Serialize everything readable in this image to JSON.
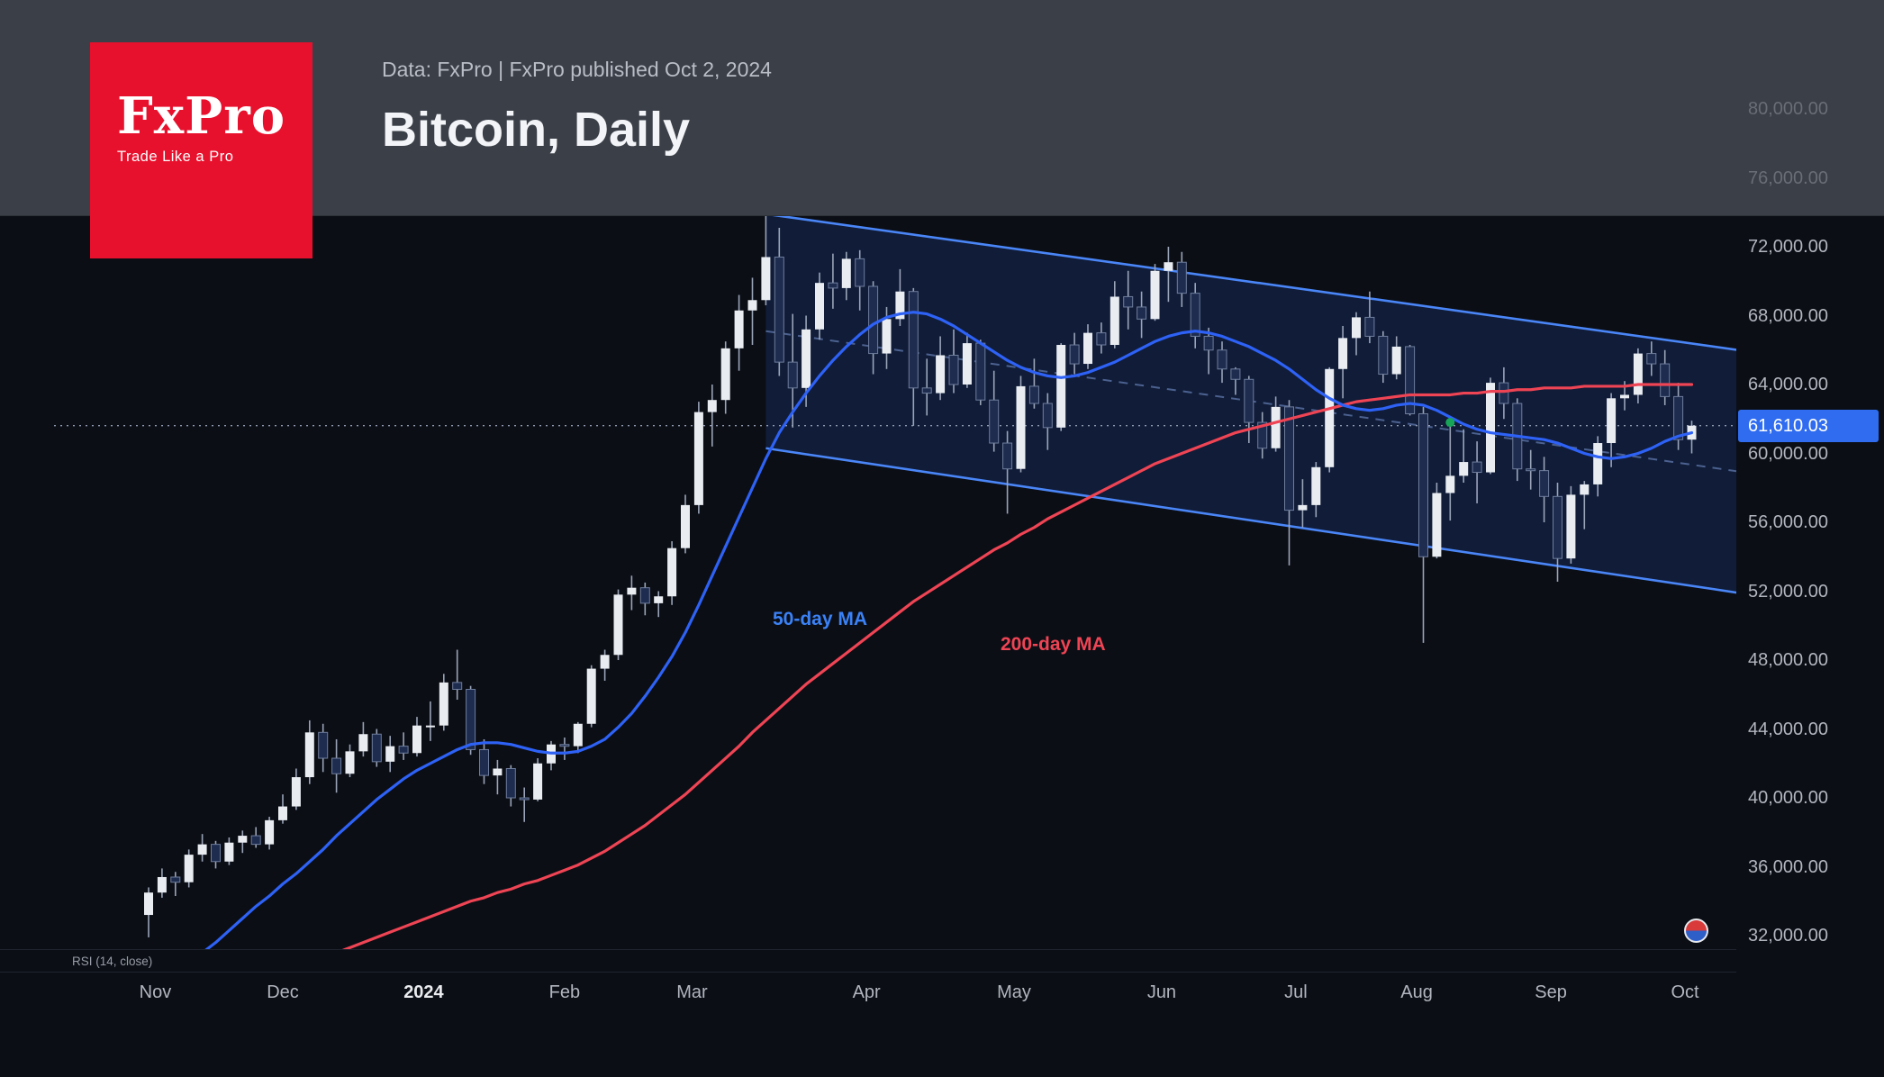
{
  "header": {
    "logo": {
      "brand": "FxPro",
      "tagline": "Trade Like a Pro",
      "bg_color": "#e8112d"
    },
    "source_line": "Data: FxPro | FxPro published Oct 2, 2024",
    "title": "Bitcoin, Daily"
  },
  "price_label": "61,610.03",
  "indicator_strip": {
    "label": "RSI (14, close)"
  },
  "chart_data": {
    "type": "candlestick",
    "title": "Bitcoin, Daily",
    "symbol": "Bitcoin",
    "timeframe": "Daily",
    "start": "2023-11-01",
    "end": "2024-10-02",
    "interval_days": 3,
    "last_price": 61610.03,
    "ylim": [
      31200,
      74500
    ],
    "grid": false,
    "price_axis": {
      "values": [
        80000,
        76000,
        72000,
        68000,
        64000,
        60000,
        56000,
        52000,
        48000,
        44000,
        40000,
        36000,
        32000
      ],
      "labels": [
        "80,000.00",
        "76,000.00",
        "72,000.00",
        "68,000.00",
        "64,000.00",
        "60,000.00",
        "56,000.00",
        "52,000.00",
        "48,000.00",
        "44,000.00",
        "40,000.00",
        "36,000.00",
        "32,000.00"
      ]
    },
    "x_axis": {
      "ticks": [
        {
          "label": "Nov",
          "i": 0.5
        },
        {
          "label": "Dec",
          "i": 10
        },
        {
          "label": "2024",
          "i": 20.5,
          "strong": true
        },
        {
          "label": "Feb",
          "i": 31
        },
        {
          "label": "Mar",
          "i": 40.5
        },
        {
          "label": "Apr",
          "i": 53.5
        },
        {
          "label": "May",
          "i": 64.5
        },
        {
          "label": "Jun",
          "i": 75.5
        },
        {
          "label": "Jul",
          "i": 85.5
        },
        {
          "label": "Aug",
          "i": 94.5
        },
        {
          "label": "Sep",
          "i": 104.5
        },
        {
          "label": "Oct",
          "i": 114.5
        }
      ]
    },
    "candles": [
      [
        33200,
        34800,
        31900,
        34500
      ],
      [
        34500,
        35900,
        34200,
        35400
      ],
      [
        35400,
        35700,
        34300,
        35100
      ],
      [
        35100,
        37000,
        34800,
        36700
      ],
      [
        36700,
        37900,
        36300,
        37300
      ],
      [
        37300,
        37500,
        35900,
        36300
      ],
      [
        36300,
        37700,
        36100,
        37400
      ],
      [
        37400,
        38100,
        36800,
        37800
      ],
      [
        37800,
        38300,
        37100,
        37300
      ],
      [
        37300,
        38900,
        37000,
        38700
      ],
      [
        38700,
        40200,
        38500,
        39500
      ],
      [
        39500,
        41700,
        39300,
        41200
      ],
      [
        41200,
        44500,
        40800,
        43800
      ],
      [
        43800,
        44300,
        41500,
        42300
      ],
      [
        42300,
        43400,
        40300,
        41400
      ],
      [
        41400,
        43100,
        41200,
        42700
      ],
      [
        42700,
        44400,
        42400,
        43700
      ],
      [
        43700,
        44000,
        41800,
        42100
      ],
      [
        42100,
        43600,
        41500,
        43000
      ],
      [
        43000,
        43800,
        42200,
        42600
      ],
      [
        42600,
        44700,
        42400,
        44200
      ],
      [
        44200,
        45600,
        43300,
        44200
      ],
      [
        44200,
        47200,
        43900,
        46700
      ],
      [
        46700,
        48600,
        45700,
        46300
      ],
      [
        46300,
        46500,
        42500,
        42800
      ],
      [
        42800,
        43400,
        40800,
        41300
      ],
      [
        41300,
        42200,
        40200,
        41700
      ],
      [
        41700,
        41900,
        39500,
        40000
      ],
      [
        40000,
        40600,
        38600,
        39900
      ],
      [
        39900,
        42300,
        39800,
        42000
      ],
      [
        42000,
        43300,
        41600,
        43100
      ],
      [
        43100,
        43500,
        42200,
        43000
      ],
      [
        43000,
        44400,
        42600,
        44300
      ],
      [
        44300,
        47700,
        44100,
        47500
      ],
      [
        47500,
        48600,
        46800,
        48300
      ],
      [
        48300,
        52100,
        48000,
        51800
      ],
      [
        51800,
        52900,
        50900,
        52200
      ],
      [
        52200,
        52500,
        50600,
        51300
      ],
      [
        51300,
        52000,
        50500,
        51700
      ],
      [
        51700,
        54900,
        51200,
        54500
      ],
      [
        54500,
        57600,
        54200,
        57000
      ],
      [
        57000,
        63000,
        56500,
        62400
      ],
      [
        62400,
        64000,
        60400,
        63100
      ],
      [
        63100,
        66500,
        62300,
        66100
      ],
      [
        66100,
        69200,
        64800,
        68300
      ],
      [
        68300,
        70200,
        66300,
        68900
      ],
      [
        68900,
        73800,
        68600,
        71400
      ],
      [
        71400,
        73100,
        64500,
        65300
      ],
      [
        65300,
        68100,
        61500,
        63800
      ],
      [
        63800,
        68000,
        62700,
        67200
      ],
      [
        67200,
        70500,
        66600,
        69900
      ],
      [
        69900,
        71600,
        68400,
        69600
      ],
      [
        69600,
        71700,
        68900,
        71300
      ],
      [
        71300,
        71800,
        68300,
        69700
      ],
      [
        69700,
        70000,
        64600,
        65800
      ],
      [
        65800,
        68500,
        64900,
        67800
      ],
      [
        67800,
        70700,
        67400,
        69400
      ],
      [
        69400,
        69600,
        61600,
        63800
      ],
      [
        63800,
        65500,
        62200,
        63500
      ],
      [
        63500,
        66800,
        63100,
        65700
      ],
      [
        65700,
        67200,
        63500,
        64000
      ],
      [
        64000,
        67000,
        63800,
        66400
      ],
      [
        66400,
        66600,
        62800,
        63100
      ],
      [
        63100,
        64800,
        60100,
        60600
      ],
      [
        60600,
        61300,
        56500,
        59100
      ],
      [
        59100,
        64500,
        58900,
        63900
      ],
      [
        63900,
        65500,
        62600,
        62900
      ],
      [
        62900,
        63500,
        60200,
        61500
      ],
      [
        61500,
        66400,
        61300,
        66300
      ],
      [
        66300,
        67000,
        64600,
        65200
      ],
      [
        65200,
        67500,
        64900,
        67000
      ],
      [
        67000,
        67600,
        65800,
        66300
      ],
      [
        66300,
        70000,
        66100,
        69100
      ],
      [
        69100,
        70600,
        67200,
        68500
      ],
      [
        68500,
        69400,
        66700,
        67800
      ],
      [
        67800,
        71000,
        67700,
        70600
      ],
      [
        70600,
        72000,
        68800,
        71100
      ],
      [
        71100,
        71700,
        68500,
        69300
      ],
      [
        69300,
        69900,
        66100,
        66800
      ],
      [
        66800,
        67300,
        64600,
        66000
      ],
      [
        66000,
        66500,
        64100,
        64900
      ],
      [
        64900,
        65000,
        63400,
        64300
      ],
      [
        64300,
        64500,
        60600,
        61800
      ],
      [
        61800,
        62400,
        59700,
        60300
      ],
      [
        60300,
        63300,
        60100,
        62700
      ],
      [
        62700,
        63100,
        53500,
        56700
      ],
      [
        56700,
        58500,
        55700,
        57000
      ],
      [
        57000,
        59500,
        56300,
        59200
      ],
      [
        59200,
        65000,
        58900,
        64900
      ],
      [
        64900,
        67400,
        63200,
        66700
      ],
      [
        66700,
        68200,
        65700,
        67900
      ],
      [
        67900,
        69400,
        66400,
        66800
      ],
      [
        66800,
        67100,
        64100,
        64600
      ],
      [
        64600,
        66800,
        64300,
        66200
      ],
      [
        66200,
        66300,
        62200,
        62300
      ],
      [
        62300,
        62700,
        49000,
        54000
      ],
      [
        54000,
        58300,
        53900,
        57700
      ],
      [
        57700,
        61800,
        56100,
        58700
      ],
      [
        58700,
        61400,
        58300,
        59500
      ],
      [
        59500,
        60700,
        57100,
        58900
      ],
      [
        58900,
        64400,
        58800,
        64100
      ],
      [
        64100,
        65000,
        62000,
        62900
      ],
      [
        62900,
        63200,
        58400,
        59100
      ],
      [
        59100,
        60200,
        57900,
        59000
      ],
      [
        59000,
        59800,
        56000,
        57500
      ],
      [
        57500,
        58300,
        52550,
        53900
      ],
      [
        53900,
        58100,
        53600,
        57600
      ],
      [
        57600,
        58400,
        55600,
        58200
      ],
      [
        58200,
        61000,
        57500,
        60600
      ],
      [
        60600,
        63500,
        59200,
        63200
      ],
      [
        63200,
        64200,
        62500,
        63400
      ],
      [
        63400,
        66100,
        62900,
        65800
      ],
      [
        65800,
        66500,
        64500,
        65200
      ],
      [
        65200,
        66000,
        62800,
        63300
      ],
      [
        63300,
        64100,
        60200,
        60800
      ],
      [
        60800,
        61900,
        60000,
        61610.03
      ]
    ],
    "ma50": {
      "label": "50-day MA",
      "color": "#2e62f6",
      "values": [
        28600,
        29200,
        29800,
        30400,
        31000,
        31600,
        32300,
        33000,
        33700,
        34300,
        35000,
        35600,
        36300,
        37000,
        37800,
        38500,
        39200,
        39900,
        40500,
        41100,
        41600,
        42000,
        42400,
        42800,
        43100,
        43200,
        43200,
        43100,
        42900,
        42700,
        42600,
        42600,
        42700,
        43000,
        43400,
        44100,
        44900,
        45900,
        47000,
        48200,
        49600,
        51200,
        52900,
        54600,
        56300,
        58000,
        59700,
        61200,
        62400,
        63500,
        64500,
        65400,
        66200,
        66900,
        67500,
        67900,
        68100,
        68200,
        68100,
        67800,
        67400,
        66900,
        66400,
        65900,
        65400,
        65000,
        64700,
        64500,
        64400,
        64500,
        64700,
        65000,
        65300,
        65700,
        66100,
        66500,
        66800,
        67000,
        67100,
        67000,
        66800,
        66500,
        66200,
        65800,
        65400,
        64900,
        64300,
        63700,
        63200,
        62800,
        62600,
        62500,
        62600,
        62800,
        62900,
        62800,
        62500,
        62100,
        61700,
        61400,
        61200,
        61100,
        61000,
        60900,
        60800,
        60600,
        60300,
        60000,
        59800,
        59700,
        59800,
        60000,
        60300,
        60700,
        61000,
        61200
      ]
    },
    "ma200": {
      "label": "200-day MA",
      "color": "#ef4454",
      "values": [
        27800,
        28000,
        28200,
        28400,
        28600,
        28800,
        29000,
        29300,
        29500,
        29700,
        29900,
        30200,
        30400,
        30700,
        31000,
        31300,
        31600,
        31900,
        32200,
        32500,
        32800,
        33100,
        33400,
        33700,
        34000,
        34200,
        34500,
        34700,
        35000,
        35200,
        35500,
        35800,
        36100,
        36500,
        36900,
        37400,
        37900,
        38400,
        39000,
        39600,
        40200,
        40900,
        41600,
        42300,
        43000,
        43800,
        44500,
        45200,
        45900,
        46600,
        47200,
        47800,
        48400,
        49000,
        49600,
        50200,
        50800,
        51400,
        51900,
        52400,
        52900,
        53400,
        53900,
        54400,
        54800,
        55300,
        55700,
        56200,
        56600,
        57000,
        57400,
        57800,
        58200,
        58600,
        59000,
        59400,
        59700,
        60000,
        60300,
        60600,
        60900,
        61200,
        61400,
        61600,
        61800,
        62000,
        62200,
        62400,
        62600,
        62800,
        63000,
        63100,
        63200,
        63300,
        63400,
        63400,
        63400,
        63400,
        63500,
        63500,
        63600,
        63600,
        63700,
        63700,
        63800,
        63800,
        63800,
        63900,
        63900,
        63900,
        63900,
        64000,
        64000,
        64000,
        64000,
        64000
      ]
    },
    "channel": {
      "start_index": 46,
      "end_index": 118.5,
      "upper": [
        73900,
        66000
      ],
      "lower": [
        60300,
        51900
      ],
      "fill": "rgba(42,98,230,0.17)",
      "line_color": "#4a86f7",
      "mid_color": "rgba(125,155,215,0.55)"
    },
    "marker": {
      "index": 97,
      "price": 61800,
      "color": "#18a558"
    },
    "colors": {
      "up": "#e9edf2",
      "down": "#1e2c50",
      "down_border": "#6f7d9c",
      "wick": "#9aa4b8",
      "background": "#0b0e15",
      "axis_text": "#b2b5be",
      "price_tag_bg": "#2f6cf0",
      "current_price_line": "#8d97ad"
    }
  }
}
